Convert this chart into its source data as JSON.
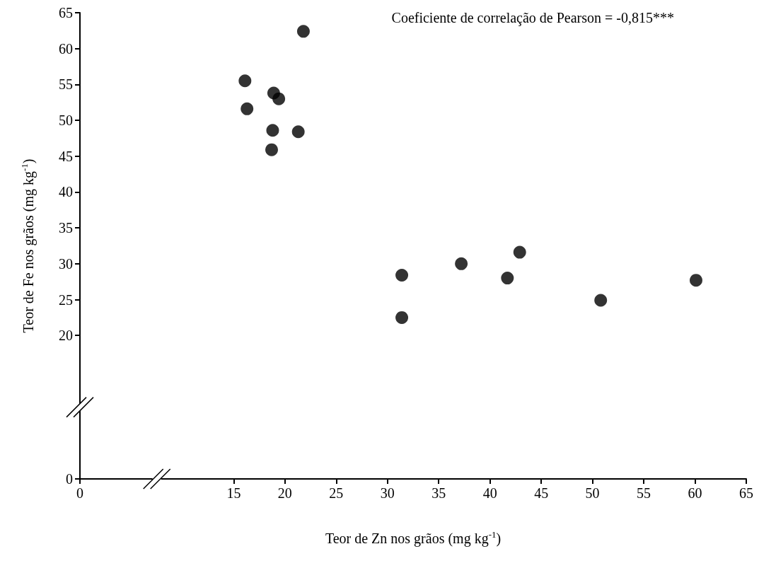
{
  "chart_data": {
    "type": "scatter",
    "xlabel": "Teor de Zn nos grãos (mg kg$^{-1}$)",
    "ylabel": "Teor de Fe nos grãos (mg kg$^{-1}$)",
    "annotations": [
      "Coeficiente de correlação de Pearson = -0,815***"
    ],
    "x": [
      21.8,
      16.1,
      18.9,
      19.4,
      16.3,
      18.8,
      21.3,
      18.7,
      31.4,
      31.4,
      37.2,
      41.7,
      42.9,
      50.8,
      60.1
    ],
    "series": [
      {
        "color": "#000000",
        "values": [
          62.4,
          55.5,
          53.8,
          53.0,
          51.6,
          48.6,
          48.4,
          45.9,
          28.4,
          22.5,
          30.0,
          28.0,
          31.6,
          24.9,
          27.7
        ]
      }
    ],
    "xlim": [
      0,
      65
    ],
    "xticks": [
      0,
      15,
      20,
      25,
      30,
      35,
      40,
      45,
      50,
      55,
      60,
      65
    ],
    "ylim": [
      0,
      65
    ],
    "yticks": [
      0,
      20,
      25,
      30,
      35,
      40,
      45,
      50,
      55,
      60,
      65
    ],
    "marker": "circle"
  }
}
